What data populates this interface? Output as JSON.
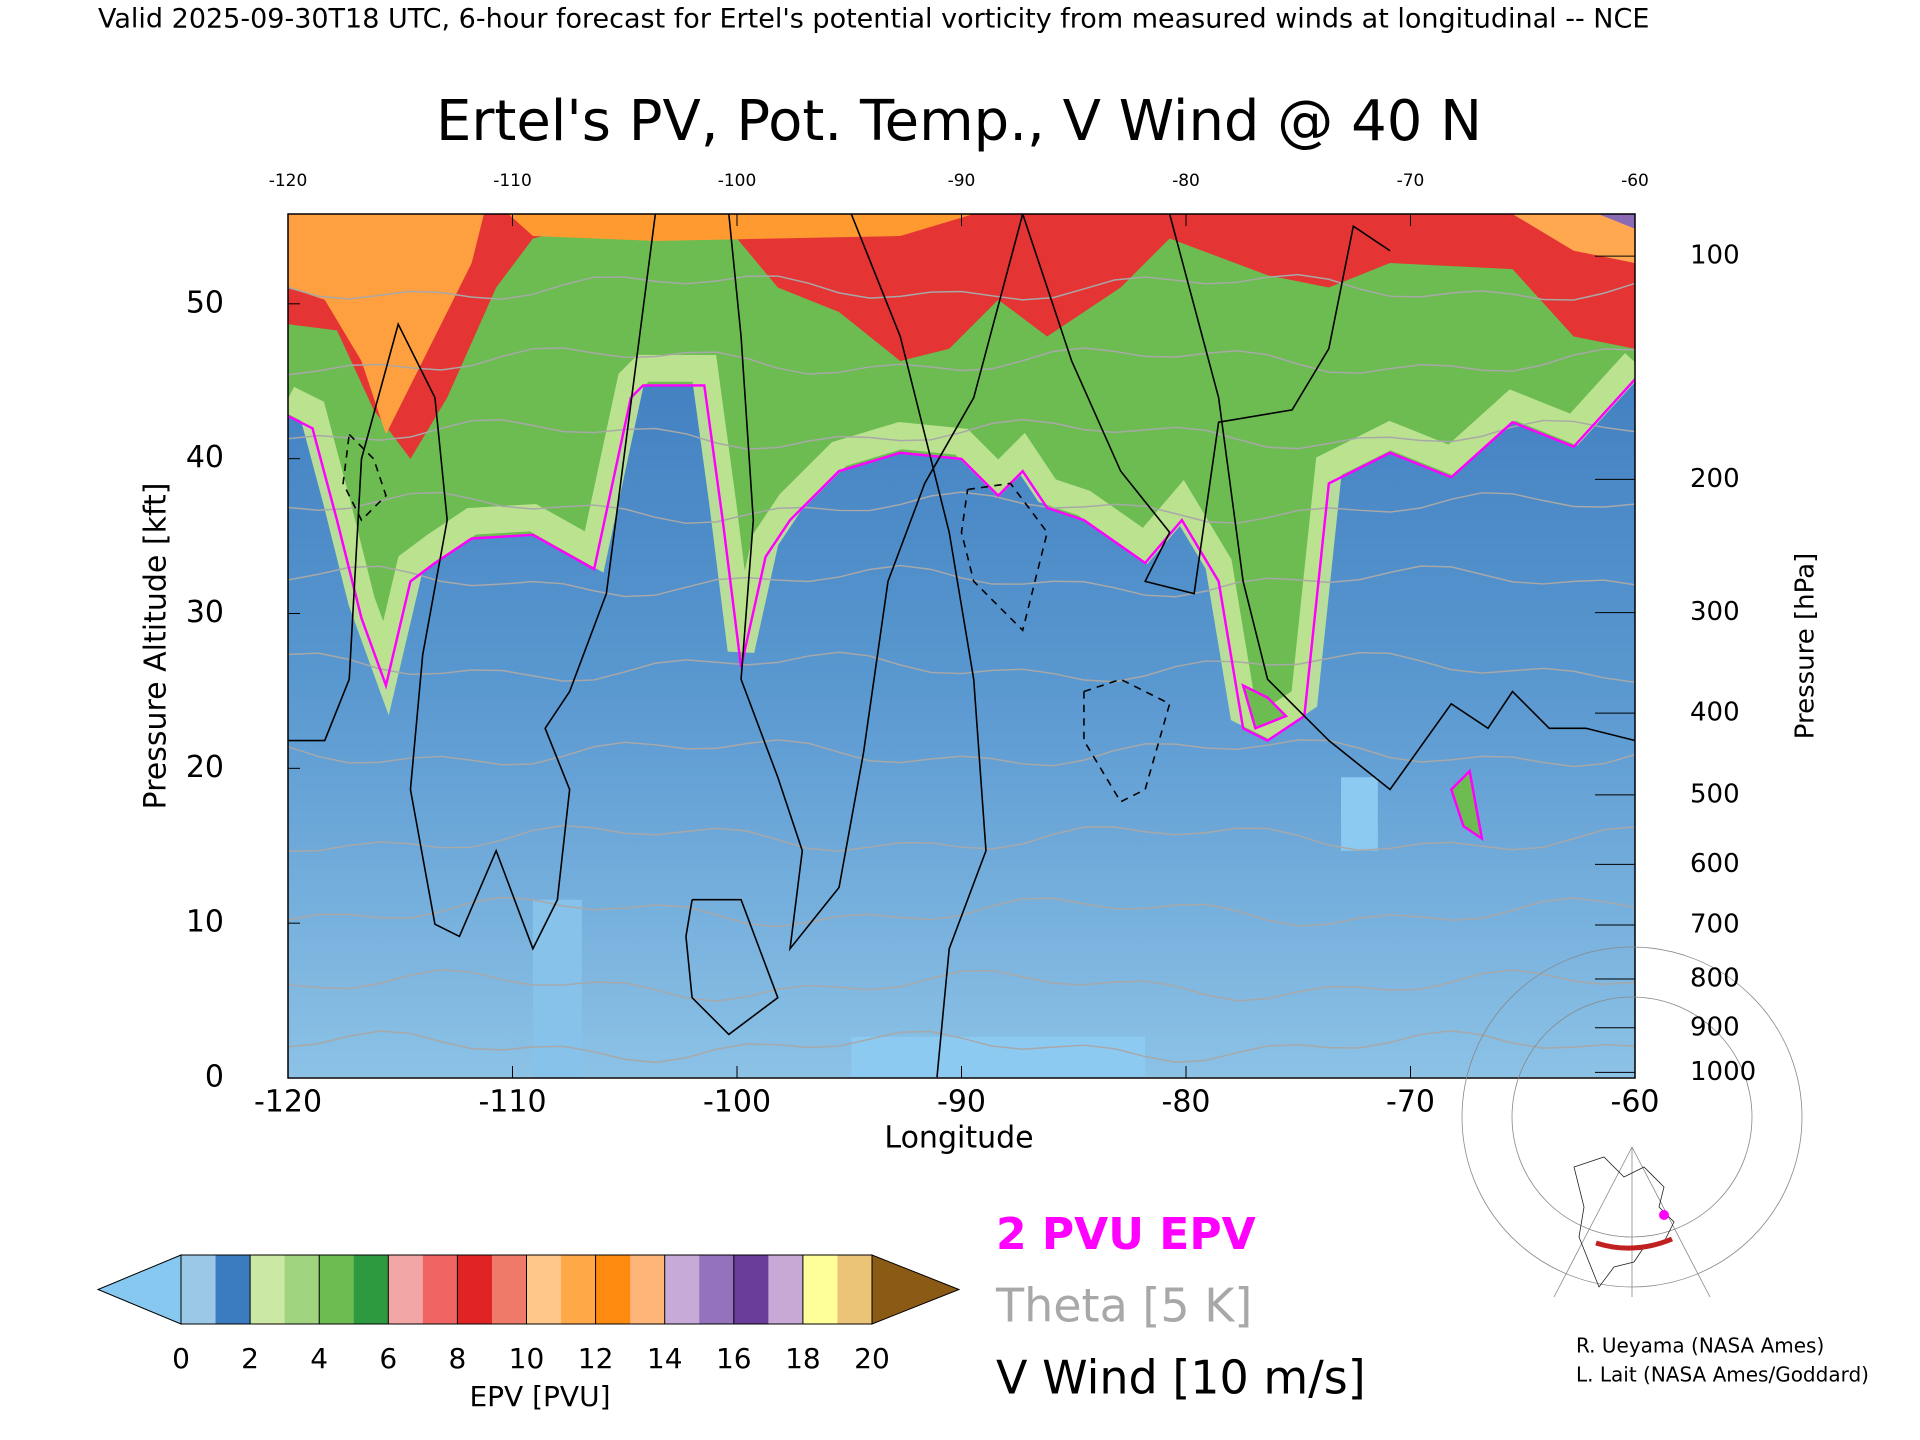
{
  "header": "Valid 2025-09-30T18 UTC, 6-hour forecast for Ertel's potential vorticity from measured winds at longitudinal -- NCE",
  "chart_data": {
    "type": "contour",
    "title": "Ertel's PV, Pot. Temp., V Wind @ 40 N",
    "xlabel": "Longitude",
    "ylabel": "Pressure Altitude [kft]",
    "y2label": "Pressure [hPa]",
    "xlim": [
      -120,
      -60
    ],
    "xticks": [
      -120,
      -110,
      -100,
      -90,
      -80,
      -70,
      -60
    ],
    "ylim": [
      0,
      55.8
    ],
    "yticks": [
      0,
      10,
      20,
      30,
      40,
      50
    ],
    "y2ticks": [
      100,
      200,
      300,
      400,
      500,
      600,
      700,
      800,
      900,
      1000
    ],
    "colorbar": {
      "label": "EPV [PVU]",
      "lim": [
        0,
        20
      ],
      "ticks": [
        0,
        2,
        4,
        6,
        8,
        10,
        12,
        14,
        16,
        18,
        20
      ],
      "under": "#87c8f0",
      "over": "#8b5a14",
      "colors": [
        "#9cc8e8",
        "#3b7bbf",
        "#cbe8a4",
        "#a0d47e",
        "#6cbc52",
        "#2e9a40",
        "#f2a6a6",
        "#f06464",
        "#e02424",
        "#f07a6a",
        "#ffc888",
        "#ffa848",
        "#ff8a10",
        "#ffb478",
        "#c8aad8",
        "#9472bc",
        "#6a3d9a",
        "#c8a8d4",
        "#ffff99",
        "#ecc478"
      ]
    },
    "legend": [
      {
        "name": "2 PVU EPV",
        "color": "#ff00ff"
      },
      {
        "name": "Theta [5 K]",
        "color": "#a8a8a8"
      },
      {
        "name": "V Wind [10 m/s]",
        "color": "#000000"
      }
    ]
  },
  "credits": [
    "R. Ueyama (NASA Ames)",
    "L. Lait (NASA Ames/Goddard)"
  ]
}
